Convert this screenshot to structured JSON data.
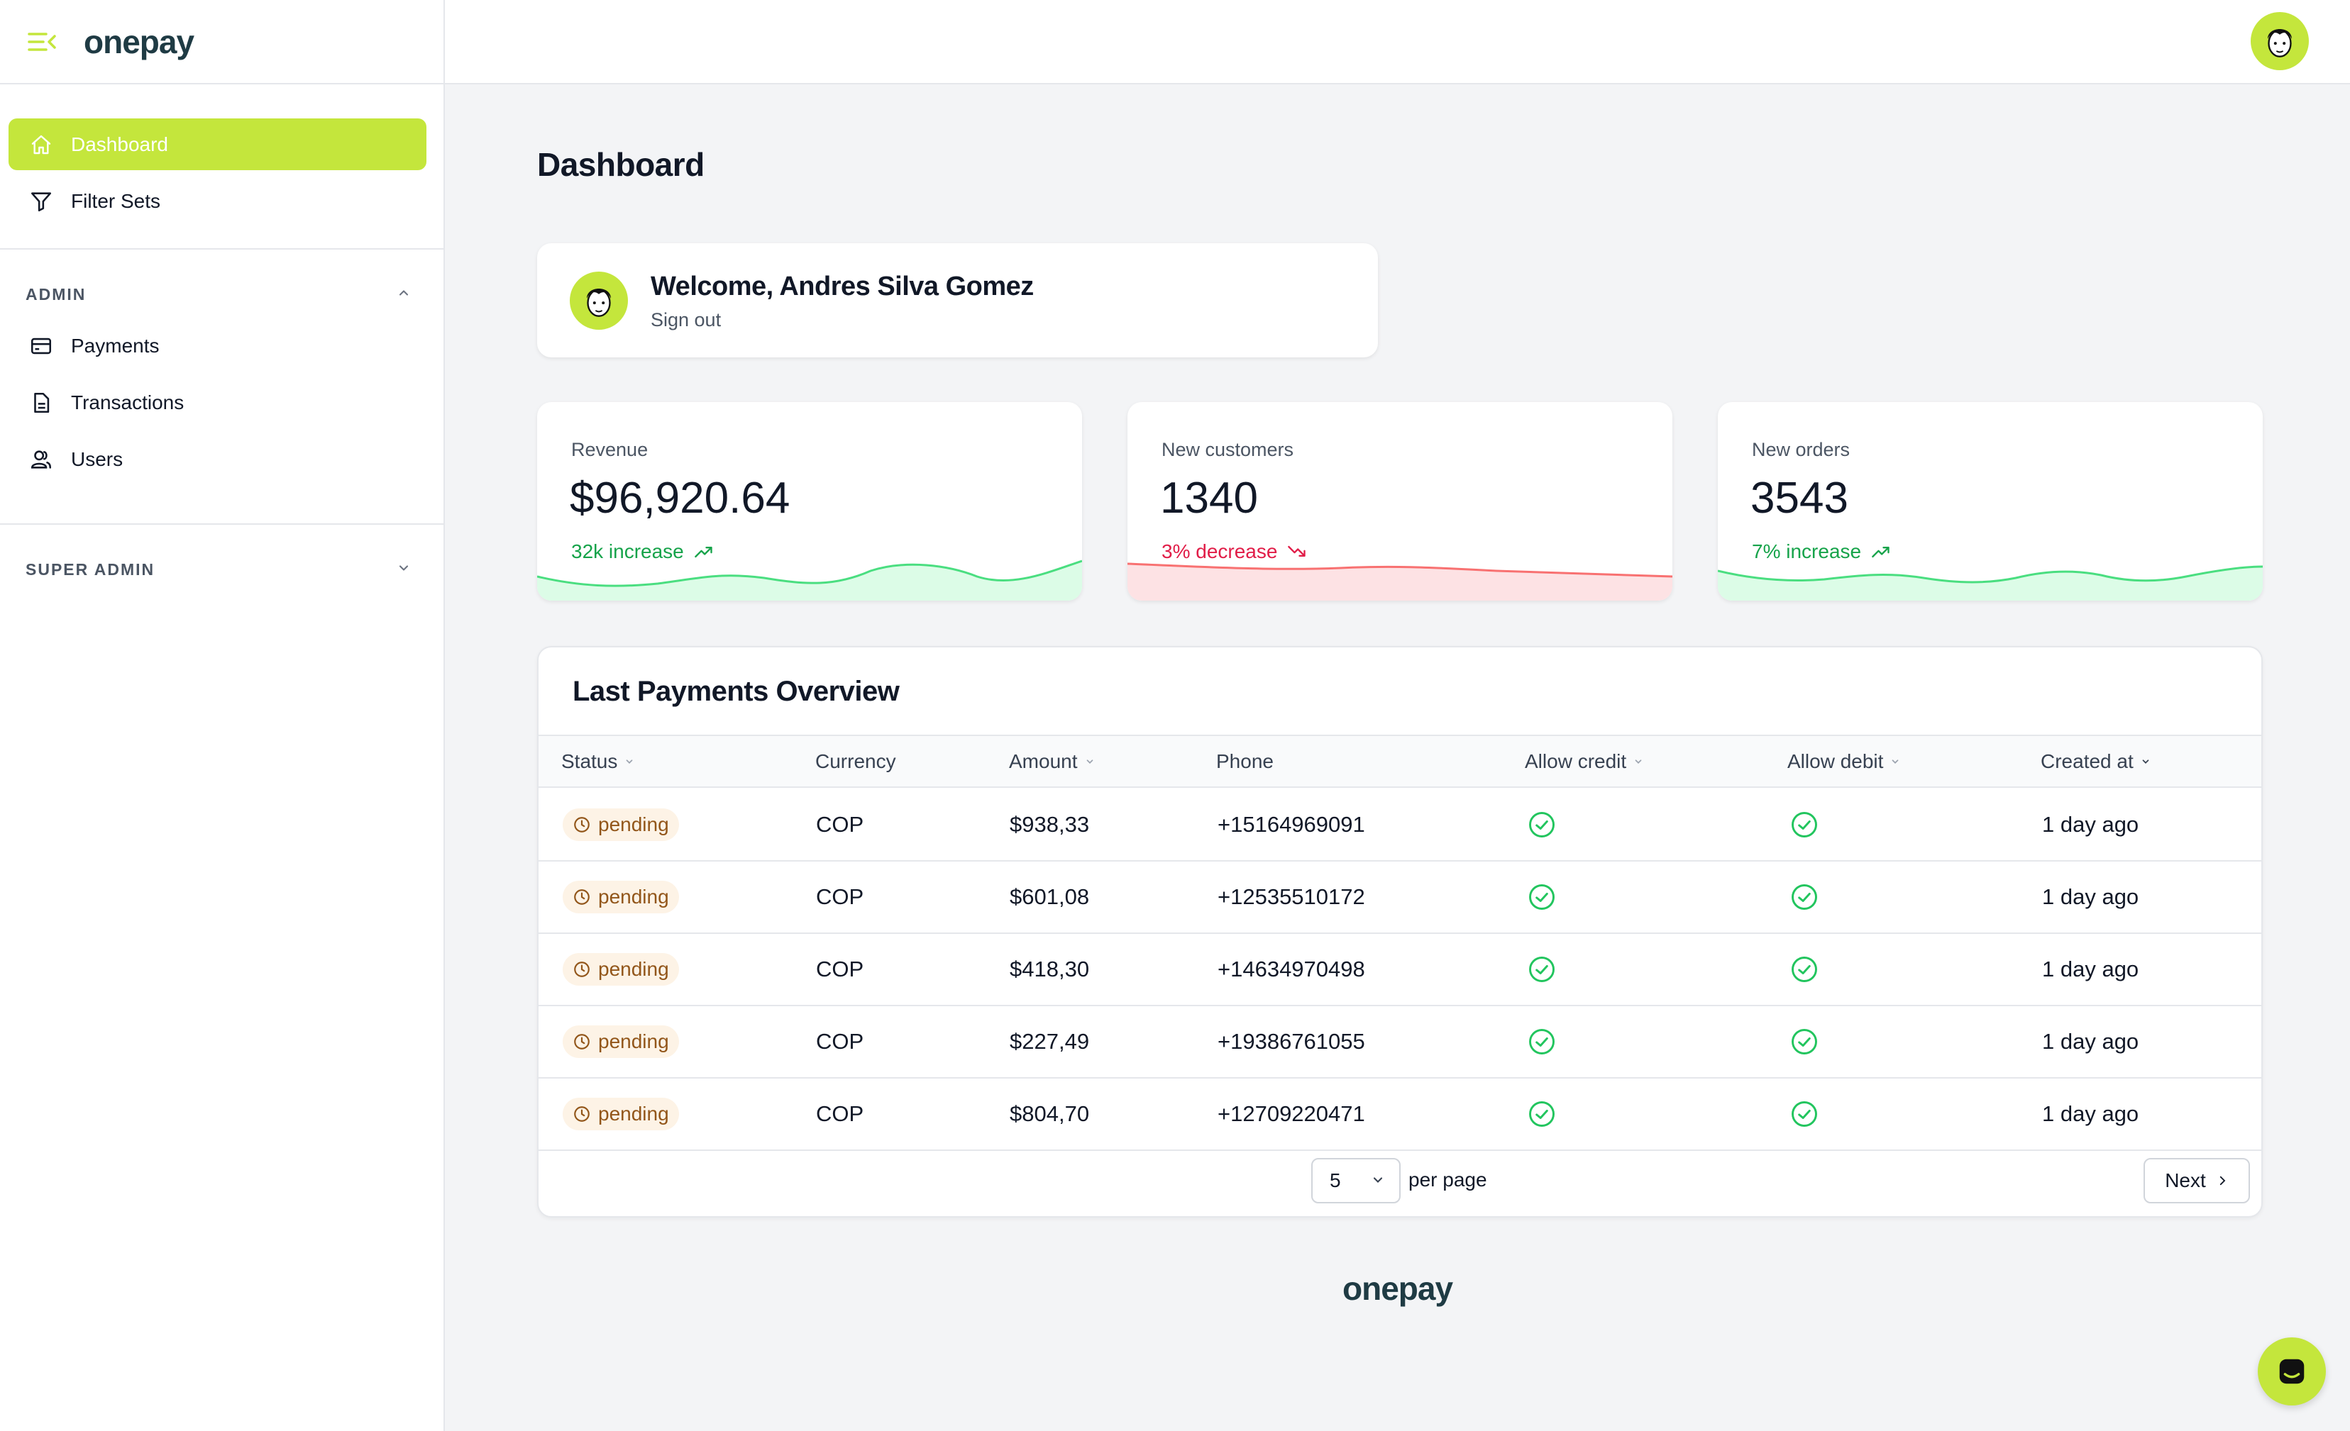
{
  "brand": {
    "name": "onepay",
    "accent_color": "#c4e63c",
    "text_color": "#1f3b44"
  },
  "sidebar": {
    "items": [
      {
        "label": "Dashboard",
        "icon": "home-icon",
        "active": true
      },
      {
        "label": "Filter Sets",
        "icon": "filter-icon",
        "active": false
      }
    ],
    "groups": [
      {
        "title": "ADMIN",
        "expanded": true,
        "items": [
          {
            "label": "Payments",
            "icon": "credit-card-icon"
          },
          {
            "label": "Transactions",
            "icon": "document-icon"
          },
          {
            "label": "Users",
            "icon": "users-icon"
          }
        ]
      },
      {
        "title": "SUPER ADMIN",
        "expanded": false,
        "items": []
      }
    ]
  },
  "page": {
    "title": "Dashboard"
  },
  "welcome": {
    "title": "Welcome, Andres Silva Gomez",
    "signout_label": "Sign out"
  },
  "stats": [
    {
      "label": "Revenue",
      "value": "$96,920.64",
      "change": "32k increase",
      "trend": "up",
      "color": "#16a34a"
    },
    {
      "label": "New customers",
      "value": "1340",
      "change": "3% decrease",
      "trend": "down",
      "color": "#e11d48"
    },
    {
      "label": "New orders",
      "value": "3543",
      "change": "7% increase",
      "trend": "up",
      "color": "#16a34a"
    }
  ],
  "payments": {
    "title": "Last Payments Overview",
    "columns": [
      "Status",
      "Currency",
      "Amount",
      "Phone",
      "Allow credit",
      "Allow debit",
      "Created at"
    ],
    "rows": [
      {
        "status": "pending",
        "currency": "COP",
        "amount": "$938,33",
        "phone": "+15164969091",
        "allow_credit": true,
        "allow_debit": true,
        "created_at": "1 day ago"
      },
      {
        "status": "pending",
        "currency": "COP",
        "amount": "$601,08",
        "phone": "+12535510172",
        "allow_credit": true,
        "allow_debit": true,
        "created_at": "1 day ago"
      },
      {
        "status": "pending",
        "currency": "COP",
        "amount": "$418,30",
        "phone": "+14634970498",
        "allow_credit": true,
        "allow_debit": true,
        "created_at": "1 day ago"
      },
      {
        "status": "pending",
        "currency": "COP",
        "amount": "$227,49",
        "phone": "+19386761055",
        "allow_credit": true,
        "allow_debit": true,
        "created_at": "1 day ago"
      },
      {
        "status": "pending",
        "currency": "COP",
        "amount": "$804,70",
        "phone": "+12709220471",
        "allow_credit": true,
        "allow_debit": true,
        "created_at": "1 day ago"
      }
    ],
    "per_page_value": "5",
    "per_page_label": "per page",
    "next_label": "Next"
  },
  "footer": {
    "logo": "onepay"
  }
}
